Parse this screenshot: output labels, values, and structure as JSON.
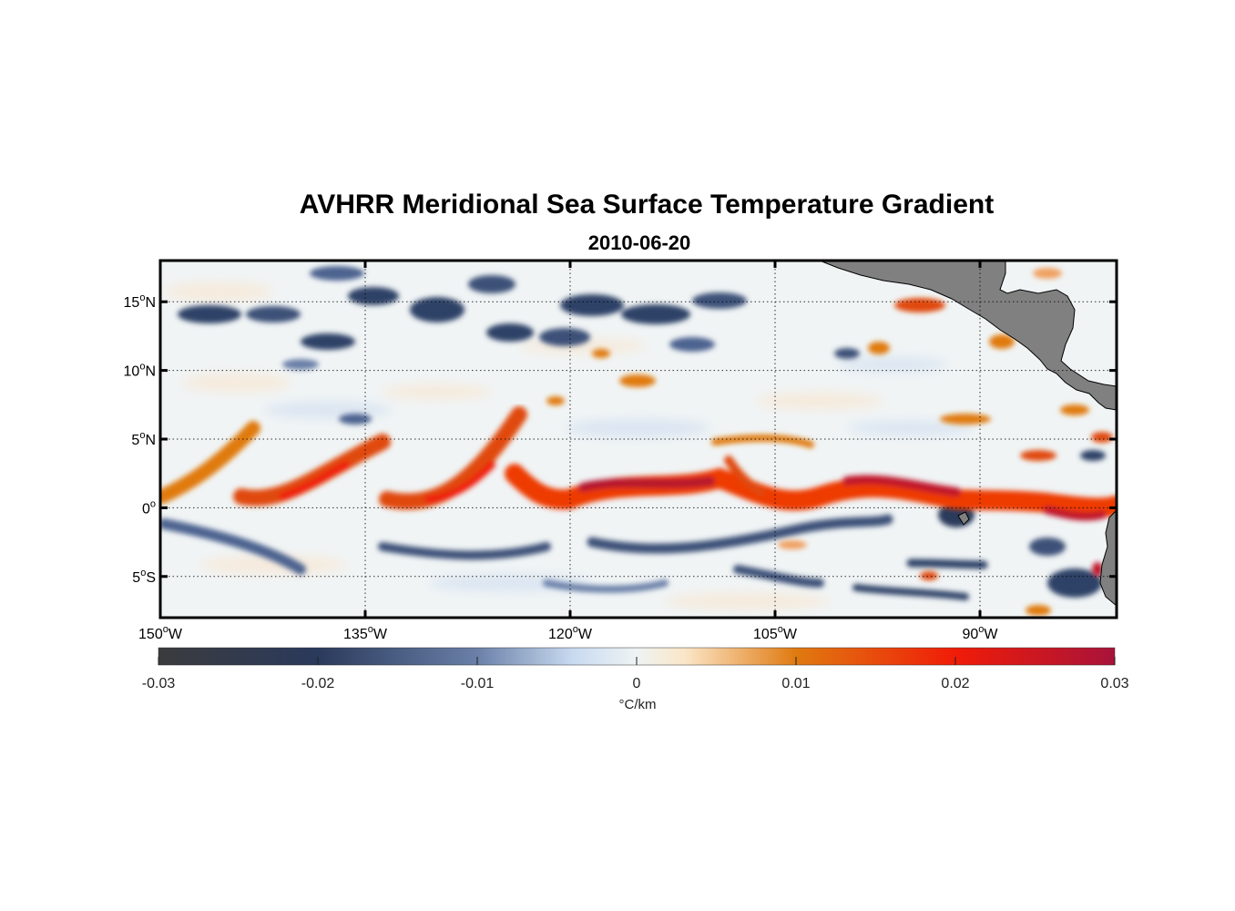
{
  "chart_data": {
    "type": "heatmap",
    "title": "AVHRR Meridional Sea Surface Temperature Gradient",
    "subtitle": "2010-06-20",
    "variable": "meridional SST gradient",
    "units_label": "°C/km",
    "colorbar": {
      "range": [
        -0.03,
        0.03
      ],
      "ticks": [
        -0.03,
        -0.02,
        -0.01,
        0,
        0.01,
        0.02,
        0.03
      ],
      "tick_labels": [
        "-0.03",
        "-0.02",
        "-0.01",
        "0",
        "0.01",
        "0.02",
        "0.03"
      ],
      "colormap_stops": [
        {
          "value": -0.03,
          "color": "#3b3b3e"
        },
        {
          "value": -0.02,
          "color": "#2a3a5c"
        },
        {
          "value": -0.01,
          "color": "#6a80a8"
        },
        {
          "value": -0.004,
          "color": "#c8daf0"
        },
        {
          "value": 0,
          "color": "#eef3f4"
        },
        {
          "value": 0.003,
          "color": "#fbe6c8"
        },
        {
          "value": 0.01,
          "color": "#e07a10"
        },
        {
          "value": 0.02,
          "color": "#f01c08"
        },
        {
          "value": 0.03,
          "color": "#a8133a"
        }
      ]
    },
    "x_axis": {
      "range_deg": [
        -150,
        -80
      ],
      "ticks": [
        -150,
        -135,
        -120,
        -105,
        -90
      ],
      "tick_labels": [
        {
          "num": "150",
          "sup": "o",
          "dir": "W"
        },
        {
          "num": "135",
          "sup": "o",
          "dir": "W"
        },
        {
          "num": "120",
          "sup": "o",
          "dir": "W"
        },
        {
          "num": "105",
          "sup": "o",
          "dir": "W"
        },
        {
          "num": "90",
          "sup": "o",
          "dir": "W"
        }
      ]
    },
    "y_axis": {
      "range_deg": [
        -8,
        18
      ],
      "ticks": [
        15,
        10,
        5,
        0,
        -5
      ],
      "tick_labels": [
        {
          "num": "15",
          "sup": "o",
          "dir": "N"
        },
        {
          "num": "10",
          "sup": "o",
          "dir": "N"
        },
        {
          "num": "5",
          "sup": "o",
          "dir": "N"
        },
        {
          "num": "0",
          "sup": "o",
          "dir": ""
        },
        {
          "num": "5",
          "sup": "o",
          "dir": "S"
        }
      ]
    },
    "grid": "dotted",
    "features": [
      {
        "name": "equatorial front",
        "sign": "positive",
        "description": "continuous band of strong positive gradient near 0°–3°N from 150°W to 85°W"
      },
      {
        "name": "southern band",
        "sign": "negative",
        "description": "negative gradient band near 1°S–5°S"
      },
      {
        "name": "northern eddies",
        "sign": "negative",
        "description": "negative gradient patches near 12°N–17°N between 148°W and 118°W"
      }
    ],
    "land_color": "#808080"
  }
}
